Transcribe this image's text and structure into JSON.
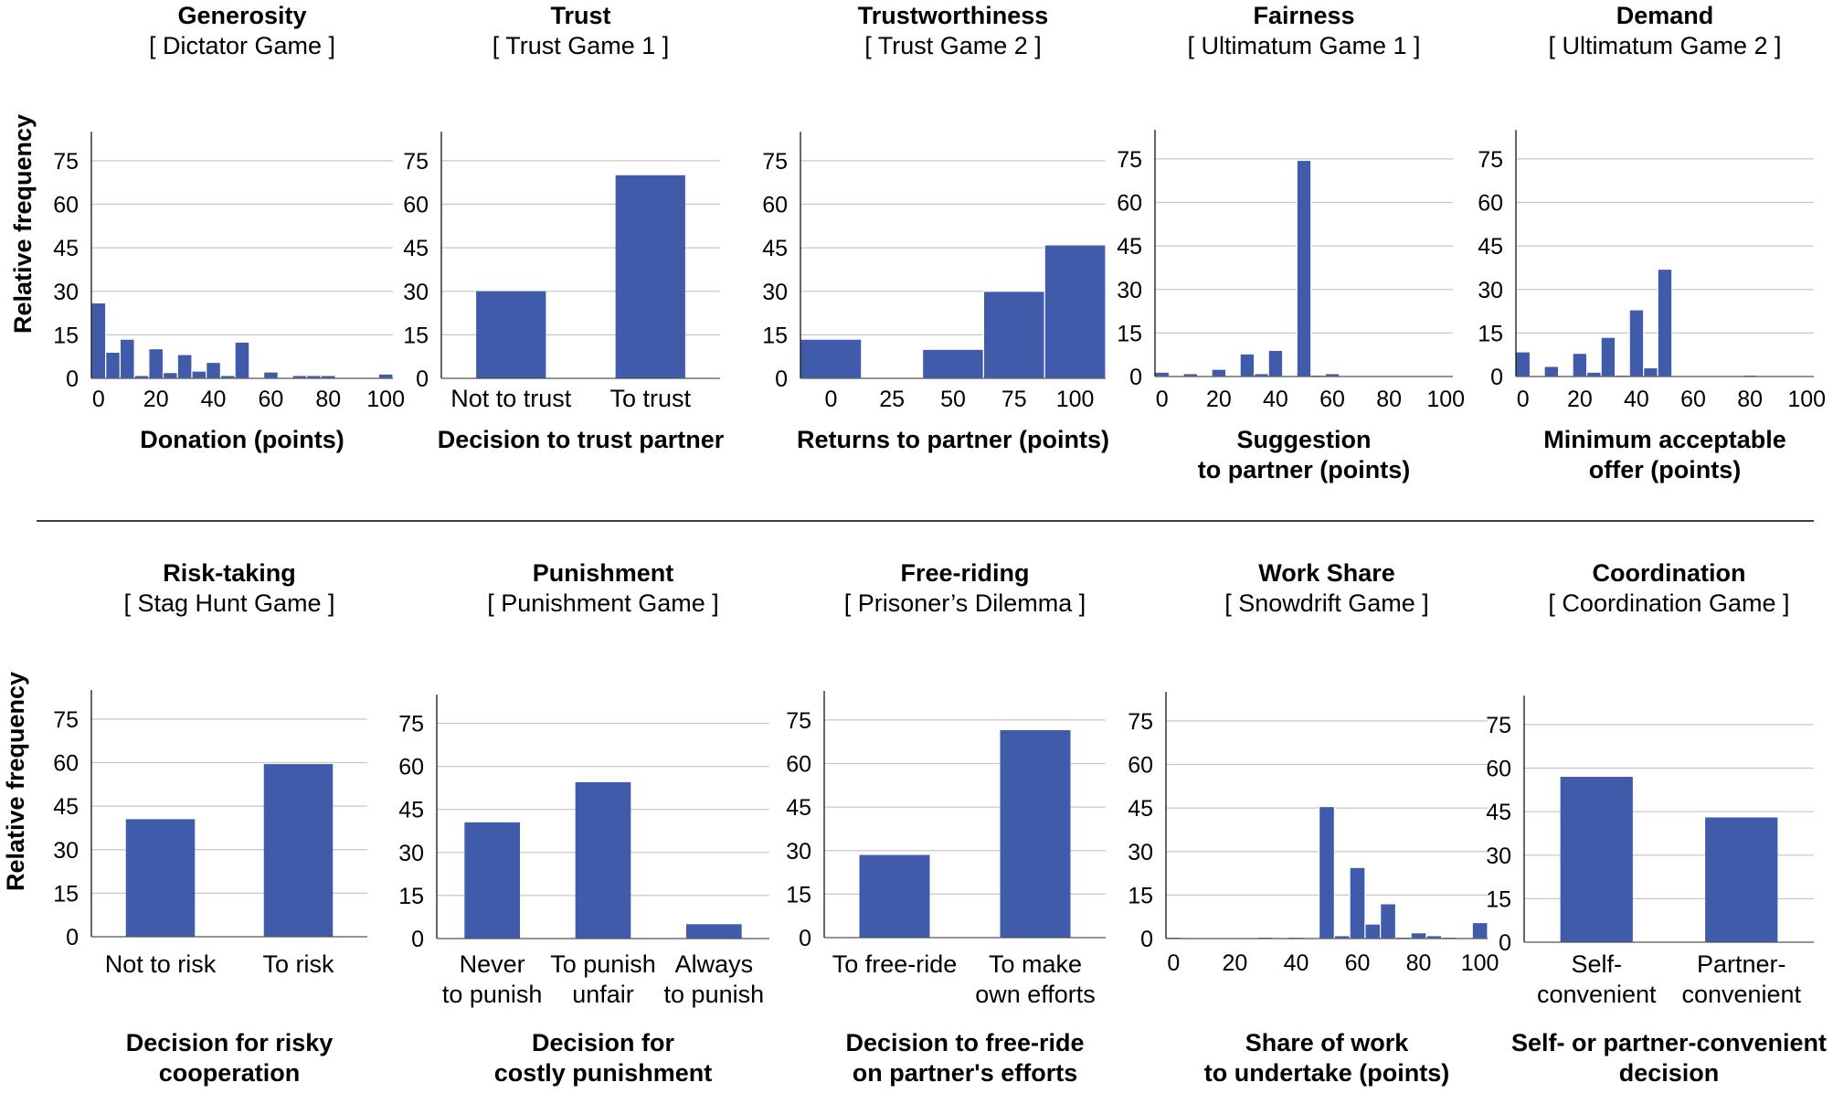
{
  "figure": {
    "ylabel": "Relative frequency",
    "bar_color": "#3f5ba9",
    "grid_color": "#c8c8c8"
  },
  "chart_data": [
    {
      "type": "bar",
      "title": "Generosity",
      "subtitle": "[ Dictator Game ]",
      "xlabel": [
        "Donation (points)"
      ],
      "ylabel": "Relative frequency",
      "ylim": [
        0,
        85
      ],
      "yticks": [
        0,
        15,
        30,
        45,
        60,
        75
      ],
      "xlim": [
        -2.5,
        102.5
      ],
      "xticks": [
        0,
        20,
        40,
        60,
        80,
        100
      ],
      "bin_width": 5,
      "x": [
        0,
        5,
        10,
        15,
        20,
        25,
        30,
        35,
        40,
        45,
        50,
        55,
        60,
        65,
        70,
        75,
        80,
        85,
        90,
        95,
        100
      ],
      "values": [
        26,
        9,
        13.5,
        1,
        10.2,
        2,
        8.2,
        2.5,
        5.5,
        1,
        12.5,
        0,
        2.2,
        0,
        1,
        1,
        1,
        0,
        0,
        0,
        1.5
      ]
    },
    {
      "type": "bar",
      "title": "Trust",
      "subtitle": "[ Trust Game 1 ]",
      "xlabel": [
        "Decision to trust partner"
      ],
      "ylabel": "Relative frequency",
      "ylim": [
        0,
        85
      ],
      "yticks": [
        0,
        15,
        30,
        45,
        60,
        75
      ],
      "categories": [
        [
          "Not to trust"
        ],
        [
          "To trust"
        ]
      ],
      "values": [
        30,
        70
      ]
    },
    {
      "type": "bar",
      "title": "Trustworthiness",
      "subtitle": "[ Trust Game 2 ]",
      "xlabel": [
        "Returns to partner (points)"
      ],
      "ylabel": "Relative frequency",
      "ylim": [
        0,
        85
      ],
      "yticks": [
        0,
        15,
        30,
        45,
        60,
        75
      ],
      "xlim": [
        -12.5,
        112.5
      ],
      "xticks": [
        0,
        25,
        50,
        75,
        100
      ],
      "bin_width": 25,
      "x": [
        0,
        25,
        50,
        75,
        100
      ],
      "values": [
        13.5,
        0,
        10,
        30,
        46
      ]
    },
    {
      "type": "bar",
      "title": "Fairness",
      "subtitle": "[ Ultimatum Game 1 ]",
      "xlabel": [
        "Suggestion",
        "to partner (points)"
      ],
      "ylabel": "Relative frequency",
      "ylim": [
        0,
        85
      ],
      "yticks": [
        0,
        15,
        30,
        45,
        60,
        75
      ],
      "xlim": [
        -2.5,
        102.5
      ],
      "xticks": [
        0,
        20,
        40,
        60,
        80,
        100
      ],
      "bin_width": 5,
      "x": [
        0,
        5,
        10,
        15,
        20,
        25,
        30,
        35,
        40,
        45,
        50,
        55,
        60,
        65,
        70,
        75,
        80,
        85,
        90,
        95,
        100
      ],
      "values": [
        1.5,
        0,
        1,
        0,
        2.5,
        0,
        7.8,
        1,
        9,
        0,
        74.5,
        0.5,
        1,
        0,
        0,
        0,
        0,
        0,
        0,
        0,
        0
      ]
    },
    {
      "type": "bar",
      "title": "Demand",
      "subtitle": "[ Ultimatum Game 2 ]",
      "xlabel": [
        "Minimum acceptable",
        "offer (points)"
      ],
      "ylabel": "Relative frequency",
      "ylim": [
        0,
        85
      ],
      "yticks": [
        0,
        15,
        30,
        45,
        60,
        75
      ],
      "xlim": [
        -2.5,
        102.5
      ],
      "xticks": [
        0,
        20,
        40,
        60,
        80,
        100
      ],
      "bin_width": 5,
      "x": [
        0,
        5,
        10,
        15,
        20,
        25,
        30,
        35,
        40,
        45,
        50,
        55,
        60,
        65,
        70,
        75,
        80,
        85,
        90,
        95,
        100
      ],
      "values": [
        8.5,
        0,
        3.5,
        0,
        8,
        1.5,
        13.5,
        0.5,
        23,
        3,
        37,
        0,
        0,
        0,
        0,
        0,
        0.5,
        0,
        0,
        0,
        0
      ]
    },
    {
      "type": "bar",
      "title": "Risk-taking",
      "subtitle": "[ Stag Hunt Game ]",
      "xlabel": [
        "Decision for risky",
        "cooperation"
      ],
      "ylabel": "Relative frequency",
      "ylim": [
        0,
        85
      ],
      "yticks": [
        0,
        15,
        30,
        45,
        60,
        75
      ],
      "categories": [
        [
          "Not to risk"
        ],
        [
          "To risk"
        ]
      ],
      "values": [
        40.5,
        59.5
      ]
    },
    {
      "type": "bar",
      "title": "Punishment",
      "subtitle": "[ Punishment Game ]",
      "xlabel": [
        "Decision for",
        "costly punishment"
      ],
      "ylabel": "Relative frequency",
      "ylim": [
        0,
        85
      ],
      "yticks": [
        0,
        15,
        30,
        45,
        60,
        75
      ],
      "categories": [
        [
          "Never",
          "to punish"
        ],
        [
          "To punish",
          "unfair"
        ],
        [
          "Always",
          "to punish"
        ]
      ],
      "values": [
        40.5,
        54.5,
        5
      ]
    },
    {
      "type": "bar",
      "title": "Free-riding",
      "subtitle": "[ Prisoner’s Dilemma ]",
      "xlabel": [
        "Decision to free-ride",
        "on partner's efforts"
      ],
      "ylabel": "Relative frequency",
      "ylim": [
        0,
        85
      ],
      "yticks": [
        0,
        15,
        30,
        45,
        60,
        75
      ],
      "categories": [
        [
          "To free-ride"
        ],
        [
          "To make",
          "own efforts"
        ]
      ],
      "values": [
        28.5,
        71.5
      ]
    },
    {
      "type": "bar",
      "title": "Work Share",
      "subtitle": "[ Snowdrift Game ]",
      "xlabel": [
        "Share of work",
        "to undertake (points)"
      ],
      "ylabel": "Relative frequency",
      "ylim": [
        0,
        85
      ],
      "yticks": [
        0,
        15,
        30,
        45,
        60,
        75
      ],
      "xlim": [
        -2.5,
        102.5
      ],
      "xticks": [
        0,
        20,
        40,
        60,
        80,
        100
      ],
      "bin_width": 5,
      "x": [
        0,
        5,
        10,
        15,
        20,
        25,
        30,
        35,
        40,
        45,
        50,
        55,
        60,
        65,
        70,
        75,
        80,
        85,
        90,
        95,
        100
      ],
      "values": [
        0.5,
        0,
        0,
        0,
        0,
        0,
        0.5,
        0,
        0.5,
        0,
        45.5,
        1,
        24.5,
        5,
        12,
        0.5,
        2,
        1,
        0.5,
        0,
        5.5
      ]
    },
    {
      "type": "bar",
      "title": "Coordination",
      "subtitle": "[ Coordination Game ]",
      "xlabel": [
        "Self- or partner-convenient",
        "decision"
      ],
      "ylabel": "Relative frequency",
      "ylim": [
        0,
        85
      ],
      "yticks": [
        0,
        15,
        30,
        45,
        60,
        75
      ],
      "categories": [
        [
          "Self-",
          "convenient"
        ],
        [
          "Partner-",
          "convenient"
        ]
      ],
      "values": [
        57,
        43
      ]
    }
  ]
}
